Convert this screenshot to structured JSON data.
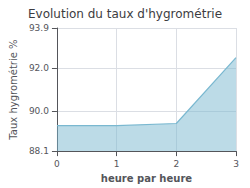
{
  "chart_data": {
    "type": "area",
    "title": "Evolution du taux d'hygrométrie",
    "xlabel": "heure par heure",
    "ylabel": "Taux hygrométrie %",
    "x": [
      0,
      1,
      2,
      3
    ],
    "values": [
      89.3,
      89.3,
      89.4,
      92.5
    ],
    "xlim": [
      0,
      3
    ],
    "ylim": [
      88.1,
      93.9
    ],
    "xticks": [
      0,
      1,
      2,
      3
    ],
    "yticks": [
      88.1,
      {
        "value": 90.0,
        "label": "90.0"
      },
      {
        "value": 92.0,
        "label": "92.0"
      },
      93.9
    ],
    "color": "#7ab8d0",
    "grid": true
  }
}
